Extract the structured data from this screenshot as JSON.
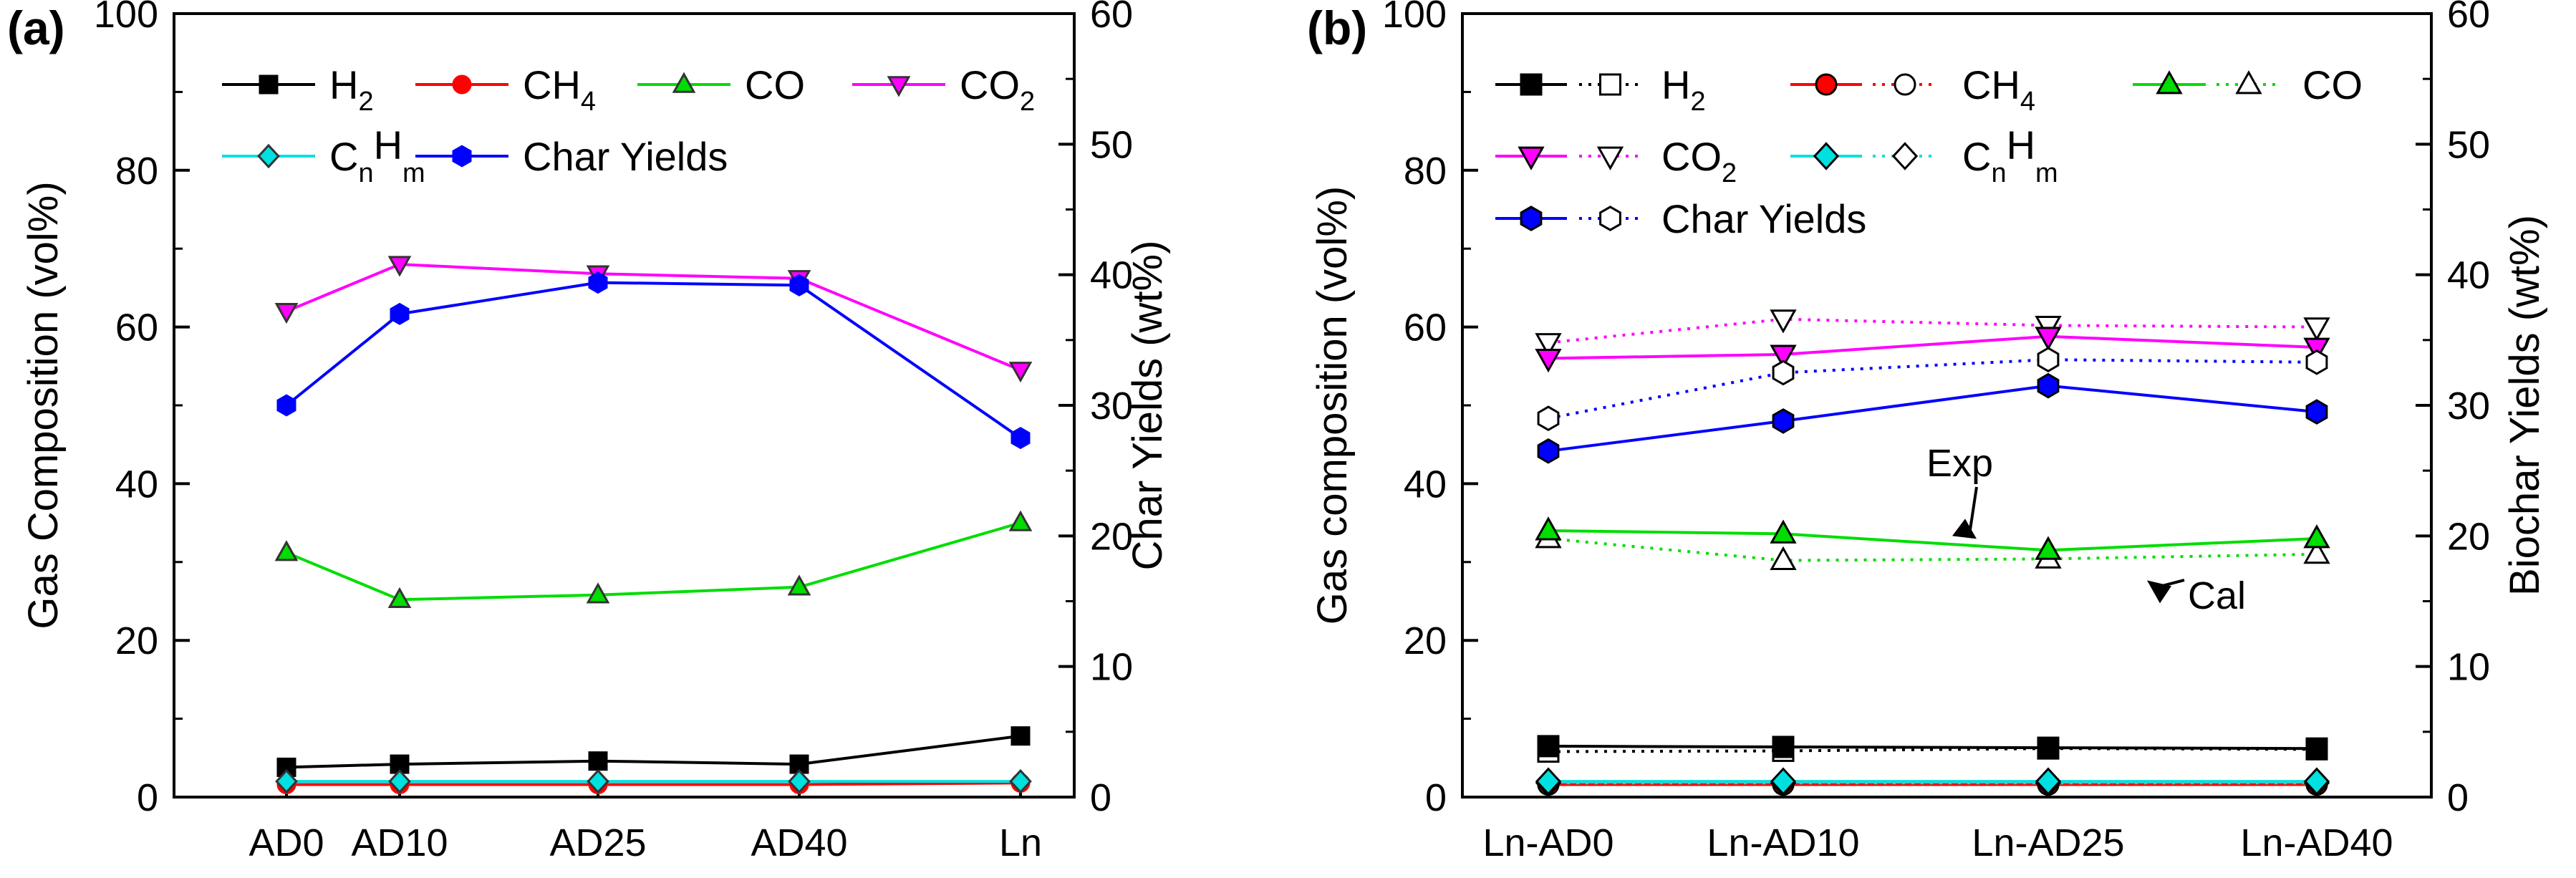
{
  "chart_data": [
    {
      "type": "line",
      "panel_label": "(a)",
      "categories": [
        "AD0",
        "AD10",
        "AD25",
        "AD40",
        "Ln"
      ],
      "left_axis": {
        "label": "Gas Composition (vol%)",
        "range": [
          0,
          100
        ],
        "ticks": [
          "0",
          "20",
          "40",
          "60",
          "80",
          "100"
        ],
        "tick_values": [
          0,
          20,
          40,
          60,
          80,
          100
        ]
      },
      "right_axis": {
        "label": "Char Yields (wt%)",
        "range": [
          0,
          60
        ],
        "ticks": [
          "0",
          "10",
          "20",
          "30",
          "40",
          "50",
          "60"
        ],
        "tick_values": [
          0,
          10,
          20,
          30,
          40,
          50,
          60
        ]
      },
      "series": [
        {
          "name": "H2",
          "legend": [
            "H",
            "2"
          ],
          "color": "#000000",
          "marker": "square",
          "axis": "left",
          "values": [
            3.8,
            4.2,
            4.6,
            4.2,
            7.8
          ]
        },
        {
          "name": "CH4",
          "legend": [
            "CH",
            "4"
          ],
          "color": "#ff0000",
          "marker": "circle",
          "axis": "left",
          "values": [
            1.6,
            1.6,
            1.6,
            1.6,
            1.8
          ]
        },
        {
          "name": "CO",
          "legend": [
            "CO",
            ""
          ],
          "color": "#00dd00",
          "marker": "triangle-up",
          "axis": "left",
          "values": [
            31.2,
            25.2,
            25.8,
            26.8,
            35.0
          ]
        },
        {
          "name": "CO2",
          "legend": [
            "CO",
            "2"
          ],
          "color": "#ff00ff",
          "marker": "triangle-down",
          "axis": "left",
          "values": [
            62.0,
            68.0,
            66.8,
            66.2,
            54.5
          ]
        },
        {
          "name": "CnHm",
          "legend_parts": [
            "C",
            "n",
            "H",
            "m"
          ],
          "color": "#00e0e0",
          "marker": "diamond",
          "axis": "left",
          "values": [
            2.0,
            2.0,
            2.0,
            2.0,
            2.0
          ]
        },
        {
          "name": "Char Yields",
          "legend": [
            "Char Yields",
            ""
          ],
          "color": "#0000ff",
          "marker": "hexagon",
          "axis": "right",
          "values": [
            30.0,
            37.0,
            39.4,
            39.2,
            27.5
          ]
        }
      ]
    },
    {
      "type": "line",
      "panel_label": "(b)",
      "categories": [
        "Ln-AD0",
        "Ln-AD10",
        "Ln-AD25",
        "Ln-AD40"
      ],
      "left_axis": {
        "label": "Gas composition (vol%)",
        "range": [
          0,
          100
        ],
        "ticks": [
          "0",
          "20",
          "40",
          "60",
          "80",
          "100"
        ],
        "tick_values": [
          0,
          20,
          40,
          60,
          80,
          100
        ]
      },
      "right_axis": {
        "label": "Biochar Yields (wt%)",
        "range": [
          0,
          60
        ],
        "ticks": [
          "0",
          "10",
          "20",
          "30",
          "40",
          "50",
          "60"
        ],
        "tick_values": [
          0,
          10,
          20,
          30,
          40,
          50,
          60
        ]
      },
      "series": [
        {
          "name": "H2",
          "legend": [
            "H",
            "2"
          ],
          "color": "#000000",
          "marker": "square",
          "axis": "left",
          "exp": [
            6.5,
            6.4,
            6.3,
            6.2
          ],
          "cal": [
            5.8,
            5.9,
            6.2,
            6.1
          ]
        },
        {
          "name": "CH4",
          "legend": [
            "CH",
            "4"
          ],
          "color": "#ff0000",
          "marker": "circle",
          "axis": "left",
          "exp": [
            1.6,
            1.6,
            1.6,
            1.6
          ],
          "cal": [
            1.6,
            1.6,
            1.6,
            1.6
          ]
        },
        {
          "name": "CO",
          "legend": [
            "CO",
            ""
          ],
          "color": "#00dd00",
          "marker": "triangle-up",
          "axis": "left",
          "exp": [
            34.0,
            33.6,
            31.5,
            33.0
          ],
          "cal": [
            33.0,
            30.2,
            30.4,
            31.0
          ]
        },
        {
          "name": "CO2",
          "legend": [
            "CO",
            "2"
          ],
          "color": "#ff00ff",
          "marker": "triangle-down",
          "axis": "left",
          "exp": [
            56.0,
            56.5,
            58.8,
            57.4
          ],
          "cal": [
            58.0,
            61.0,
            60.2,
            60.0
          ]
        },
        {
          "name": "CnHm",
          "legend_parts": [
            "C",
            "n",
            "H",
            "m"
          ],
          "color": "#00e0e0",
          "marker": "diamond",
          "axis": "left",
          "exp": [
            2.0,
            2.0,
            2.0,
            2.0
          ],
          "cal": [
            1.8,
            1.8,
            1.8,
            1.8
          ]
        },
        {
          "name": "Char Yields",
          "legend": [
            "Char Yields",
            ""
          ],
          "color": "#0000ff",
          "marker": "hexagon",
          "axis": "right",
          "exp": [
            26.5,
            28.8,
            31.5,
            29.5
          ],
          "cal": [
            29.0,
            32.5,
            33.5,
            33.3
          ]
        }
      ],
      "annotations": [
        {
          "text": "Exp",
          "target_category": "Ln-AD25",
          "target_series": "CO",
          "kind": "exp"
        },
        {
          "text": "Cal",
          "target_category": "Ln-AD25",
          "target_series": "CO",
          "kind": "cal"
        }
      ]
    }
  ]
}
